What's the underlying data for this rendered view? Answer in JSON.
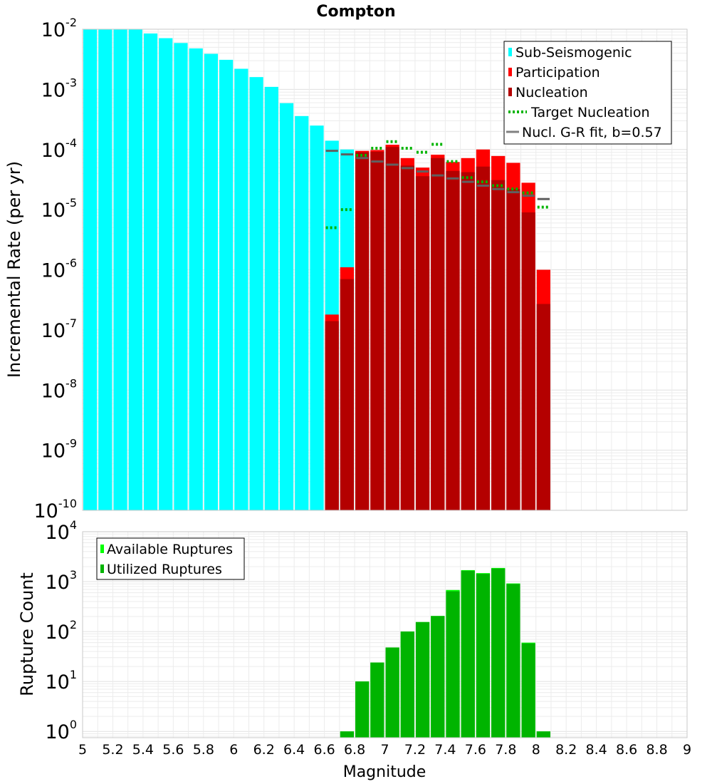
{
  "chart_data": [
    {
      "type": "bar",
      "title": "Compton",
      "ylabel": "Incremental Rate (per yr)",
      "xlabel": "",
      "yscale": "log",
      "ylim": [
        1e-10,
        0.01
      ],
      "xlim": [
        5,
        9
      ],
      "bin_width": 0.1,
      "ytick_labels": [
        {
          "base": "10",
          "exp": "-2"
        },
        {
          "base": "10",
          "exp": "-3"
        },
        {
          "base": "10",
          "exp": "-4"
        },
        {
          "base": "10",
          "exp": "-5"
        },
        {
          "base": "10",
          "exp": "-6"
        },
        {
          "base": "10",
          "exp": "-7"
        },
        {
          "base": "10",
          "exp": "-8"
        },
        {
          "base": "10",
          "exp": "-9"
        },
        {
          "base": "10",
          "exp": "-10"
        }
      ],
      "legend_position": "top-right",
      "legend": [
        {
          "label": "Sub-Seismogenic",
          "color": "#00ffff",
          "kind": "bar"
        },
        {
          "label": "Participation",
          "color": "#ff0000",
          "kind": "bar"
        },
        {
          "label": "Nucleation",
          "color": "#b40000",
          "kind": "bar"
        },
        {
          "label": "Target Nucleation",
          "color": "#00b400",
          "kind": "dotted"
        },
        {
          "label": "Nucl. G-R fit, b=0.57",
          "color": "#808080",
          "kind": "line"
        }
      ],
      "series": [
        {
          "name": "Sub-Seismogenic",
          "color": "#00ffff",
          "x": [
            5.05,
            5.15,
            5.25,
            5.35,
            5.45,
            5.55,
            5.65,
            5.75,
            5.85,
            5.95,
            6.05,
            6.15,
            6.25,
            6.35,
            6.45,
            6.55,
            6.65,
            6.75
          ],
          "values": [
            0.01,
            0.01,
            0.01,
            0.01,
            0.0085,
            0.0071,
            0.0059,
            0.0048,
            0.0039,
            0.0031,
            0.0022,
            0.0016,
            0.0011,
            0.00059,
            0.00036,
            0.00025,
            0.00014,
            0.0001
          ]
        },
        {
          "name": "Participation",
          "color": "#ff0000",
          "x": [
            6.65,
            6.75,
            6.85,
            6.95,
            7.05,
            7.15,
            7.25,
            7.35,
            7.45,
            7.55,
            7.65,
            7.75,
            7.85,
            7.95,
            8.05
          ],
          "values": [
            1.8e-07,
            1.1e-06,
            9.5e-05,
            9.8e-05,
            0.00012,
            7.2e-05,
            5e-05,
            8.2e-05,
            6.2e-05,
            7.2e-05,
            0.0001,
            7.8e-05,
            6e-05,
            2.8e-05,
            1e-06
          ]
        },
        {
          "name": "Nucleation",
          "color": "#b40000",
          "x": [
            6.65,
            6.75,
            6.85,
            6.95,
            7.05,
            7.15,
            7.25,
            7.35,
            7.45,
            7.55,
            7.65,
            7.75,
            7.85,
            7.95,
            8.05
          ],
          "values": [
            1.4e-07,
            7e-07,
            9e-05,
            9.2e-05,
            0.00011,
            5.4e-05,
            3.6e-05,
            7.2e-05,
            4.4e-05,
            4.2e-05,
            5.2e-05,
            3.1e-05,
            2.2e-05,
            9e-06,
            2.7e-07
          ]
        },
        {
          "name": "Target Nucleation",
          "color": "#00b400",
          "x": [
            6.65,
            6.75,
            6.85,
            6.95,
            7.05,
            7.15,
            7.25,
            7.35,
            7.45,
            7.55,
            7.65,
            7.75,
            7.85,
            7.95,
            8.05
          ],
          "values": [
            5e-06,
            1e-05,
            8e-05,
            0.000105,
            0.000135,
            0.000105,
            9e-05,
            0.000122,
            6.3e-05,
            3.4e-05,
            2.9e-05,
            2.5e-05,
            2.2e-05,
            1.9e-05,
            1.1e-05
          ]
        },
        {
          "name": "Nucl. G-R fit, b=0.57",
          "color": "#606060",
          "x": [
            6.65,
            6.75,
            6.85,
            6.95,
            7.05,
            7.15,
            7.25,
            7.35,
            7.45,
            7.55,
            7.65,
            7.75,
            7.85,
            7.95,
            8.05
          ],
          "values": [
            9.5e-05,
            8.3e-05,
            7.2e-05,
            6.3e-05,
            5.6e-05,
            4.9e-05,
            4.3e-05,
            3.7e-05,
            3.3e-05,
            2.9e-05,
            2.5e-05,
            2.2e-05,
            1.95e-05,
            1.7e-05,
            1.5e-05
          ]
        }
      ]
    },
    {
      "type": "bar",
      "title": "",
      "ylabel": "Rupture Count",
      "xlabel": "Magnitude",
      "yscale": "log",
      "ylim": [
        0.75,
        10000
      ],
      "xlim": [
        5,
        9
      ],
      "bin_width": 0.1,
      "ytick_labels": [
        {
          "base": "10",
          "exp": "4"
        },
        {
          "base": "10",
          "exp": "3"
        },
        {
          "base": "10",
          "exp": "2"
        },
        {
          "base": "10",
          "exp": "1"
        },
        {
          "base": "10",
          "exp": "0"
        }
      ],
      "xtick_labels": [
        "5",
        "5.2",
        "5.4",
        "5.6",
        "5.8",
        "6",
        "6.2",
        "6.4",
        "6.6",
        "6.8",
        "7",
        "7.2",
        "7.4",
        "7.6",
        "7.8",
        "8",
        "8.2",
        "8.4",
        "8.6",
        "8.8",
        "9"
      ],
      "legend_position": "top-left",
      "legend": [
        {
          "label": "Available Ruptures",
          "color": "#00ff00",
          "kind": "bar"
        },
        {
          "label": "Utilized Ruptures",
          "color": "#00b400",
          "kind": "bar"
        }
      ],
      "series": [
        {
          "name": "Available Ruptures",
          "color": "#00ff00",
          "x": [
            6.75,
            6.85,
            6.95,
            7.05,
            7.15,
            7.25,
            7.35,
            7.45,
            7.55,
            7.65,
            7.75,
            7.85,
            7.95,
            8.05
          ],
          "values": [
            1,
            10,
            24,
            48,
            100,
            155,
            205,
            680,
            1700,
            1480,
            1880,
            920,
            60,
            1
          ]
        },
        {
          "name": "Utilized Ruptures",
          "color": "#00b400",
          "x": [
            6.75,
            6.85,
            6.95,
            7.05,
            7.15,
            7.25,
            7.35,
            7.45,
            7.55,
            7.65,
            7.75,
            7.85,
            7.95,
            8.05
          ],
          "values": [
            1,
            10,
            24,
            48,
            100,
            155,
            205,
            640,
            1650,
            1430,
            1830,
            900,
            58,
            1
          ]
        }
      ]
    }
  ]
}
